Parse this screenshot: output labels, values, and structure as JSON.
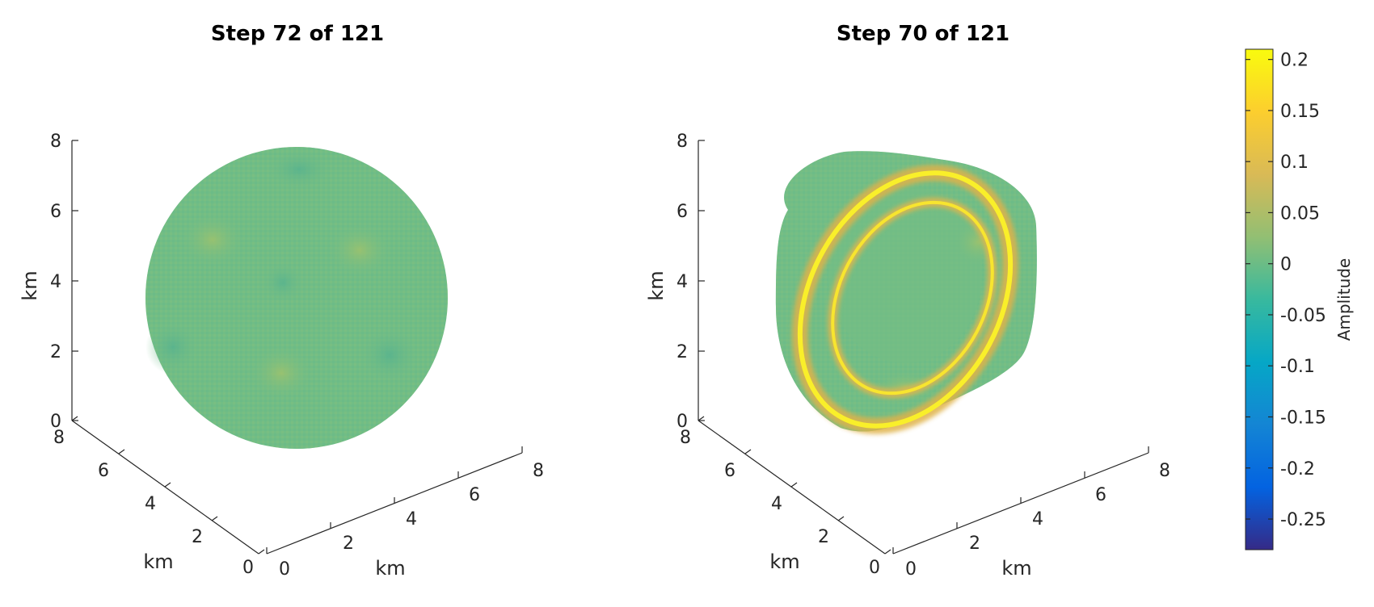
{
  "chart_data": [
    {
      "type": "heatmap",
      "title": "Step 72 of 121",
      "xlabel": "km",
      "ylabel": "km",
      "zlabel": "km",
      "xlim": [
        0,
        8
      ],
      "ylim": [
        0,
        8
      ],
      "zlim": [
        0,
        8
      ],
      "xticks": [
        "0",
        "2",
        "4",
        "6",
        "8"
      ],
      "yticks": [
        "0",
        "2",
        "4",
        "6",
        "8"
      ],
      "zticks": [
        "0",
        "2",
        "4",
        "6",
        "8"
      ],
      "surface": "full sphere",
      "ring_amplitude": null
    },
    {
      "type": "heatmap",
      "title": "Step 70 of 121",
      "xlabel": "km",
      "ylabel": "km",
      "zlabel": "km",
      "xlim": [
        0,
        8
      ],
      "ylim": [
        0,
        8
      ],
      "zlim": [
        0,
        8
      ],
      "xticks": [
        "0",
        "2",
        "4",
        "6",
        "8"
      ],
      "yticks": [
        "0",
        "2",
        "4",
        "6",
        "8"
      ],
      "zticks": [
        "0",
        "2",
        "4",
        "6",
        "8"
      ],
      "surface": "sphere cut open with two wavefront rings",
      "ring_amplitude": 0.15
    }
  ],
  "colorbar": {
    "label": "Amplitude",
    "range": [
      -0.28,
      0.21
    ],
    "ticks": [
      "0.2",
      "0.15",
      "0.1",
      "0.05",
      "0",
      "-0.05",
      "-0.1",
      "-0.15",
      "-0.2",
      "-0.25"
    ],
    "tick_values": [
      0.2,
      0.15,
      0.1,
      0.05,
      0,
      -0.05,
      -0.1,
      -0.15,
      -0.2,
      -0.25
    ],
    "colormap": [
      "#352a87",
      "#0363e1",
      "#1485d4",
      "#06a7c6",
      "#38b99e",
      "#92bf73",
      "#d9ba56",
      "#fcce2e",
      "#f9fb0e"
    ],
    "background_color": "#6fbf86"
  }
}
